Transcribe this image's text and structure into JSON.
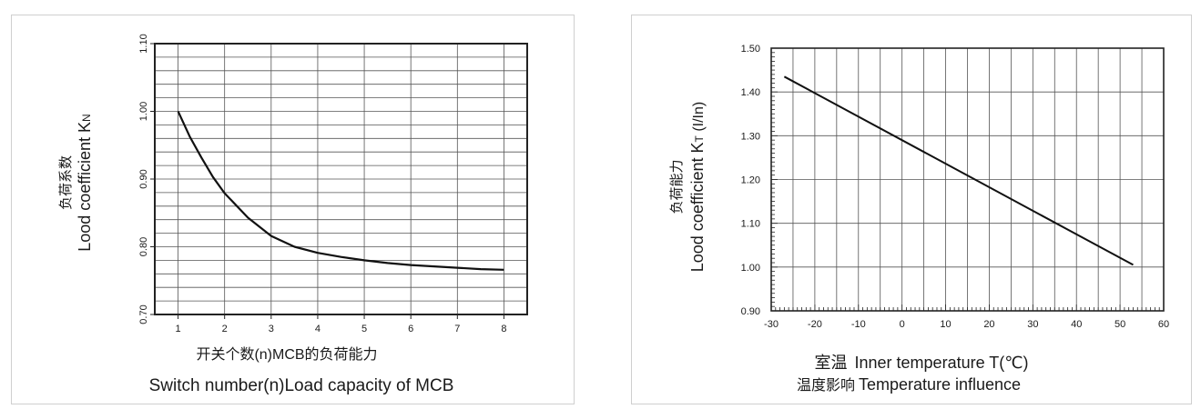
{
  "chart_data": [
    {
      "type": "line",
      "ylabel_cn": "负荷系数",
      "ylabel_main": "Lood coefficient K",
      "ylabel_sub": "N",
      "xlabel_cn": "开关个数(n)MCB的负荷能力",
      "xlabel_en": "Switch number(n)Load capacity of MCB",
      "xlim": [
        0.5,
        8.5
      ],
      "ylim": [
        0.7,
        1.1
      ],
      "x_ticks": [
        1,
        2,
        3,
        4,
        5,
        6,
        7,
        8
      ],
      "x_tick_labels": [
        "1",
        "2",
        "3",
        "4",
        "5",
        "6",
        "7",
        "8"
      ],
      "y_ticks": [
        0.7,
        0.8,
        0.9,
        1.0,
        1.1
      ],
      "y_tick_labels": [
        "0.70",
        "0.80",
        "0.90",
        "1.00",
        "1.10"
      ],
      "grid": true,
      "series": [
        {
          "x": [
            1.0,
            1.25,
            1.5,
            1.75,
            2.0,
            2.5,
            3.0,
            3.5,
            4.0,
            4.5,
            5.0,
            5.5,
            6.0,
            6.5,
            7.0,
            7.5,
            8.0
          ],
          "y": [
            1.0,
            0.963,
            0.932,
            0.903,
            0.879,
            0.843,
            0.816,
            0.8,
            0.791,
            0.785,
            0.78,
            0.776,
            0.773,
            0.771,
            0.769,
            0.767,
            0.766
          ]
        }
      ]
    },
    {
      "type": "line",
      "ylabel_cn": "负荷能力",
      "ylabel_main": "Lood coefficient K",
      "ylabel_sub": "T",
      "ylabel_unit": " (I/In)",
      "xlabel_cn1": "室温",
      "xlabel_en1": "Inner temperature T(℃)",
      "xlabel_cn2": "温度影响",
      "xlabel_en2": "Temperature influence",
      "xlim": [
        -30,
        60
      ],
      "ylim": [
        0.9,
        1.5
      ],
      "x_ticks": [
        -30,
        -20,
        -10,
        0,
        10,
        20,
        30,
        40,
        50,
        60
      ],
      "x_tick_labels": [
        "-30",
        "-20",
        "-10",
        "0",
        "10",
        "20",
        "30",
        "40",
        "50",
        "60"
      ],
      "y_ticks": [
        0.9,
        1.0,
        1.1,
        1.2,
        1.3,
        1.4,
        1.5
      ],
      "y_tick_labels": [
        "0.90",
        "1.00",
        "1.10",
        "1.20",
        "1.30",
        "1.40",
        "1.50"
      ],
      "grid": true,
      "series": [
        {
          "x": [
            -27,
            53
          ],
          "y": [
            1.435,
            1.005
          ]
        }
      ]
    }
  ]
}
